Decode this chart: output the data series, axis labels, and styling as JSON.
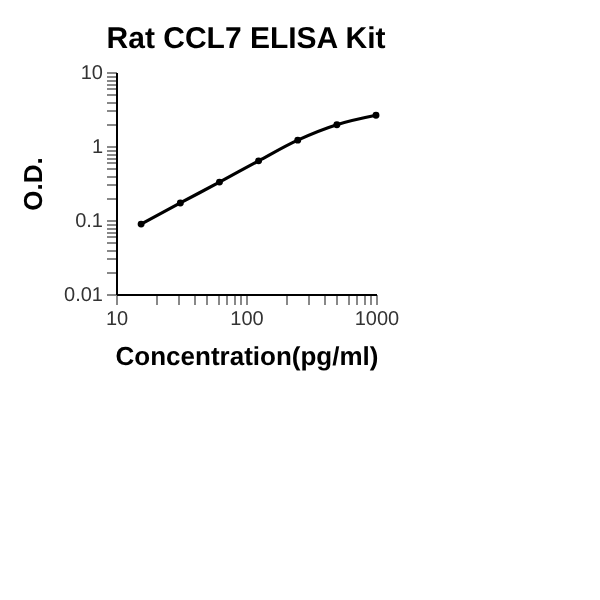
{
  "chart_data": {
    "type": "line",
    "title": "Rat CCL7 ELISA Kit",
    "xlabel": "Concentration(pg/ml)",
    "ylabel": "O.D.",
    "log": "xy",
    "grid": false,
    "marker": "circle",
    "line_style": "solid",
    "x": [
      15.6,
      31.25,
      62.5,
      125,
      250,
      500,
      1000
    ],
    "series": [
      {
        "color": "#000000",
        "values": [
          0.088,
          0.17,
          0.325,
          0.63,
          1.2,
          1.94,
          2.6
        ]
      }
    ],
    "xlim": [
      10,
      1000
    ],
    "xticks": [
      10,
      {
        "value": 20,
        "label": null
      },
      {
        "value": 30,
        "label": null
      },
      {
        "value": 40,
        "label": null
      },
      {
        "value": 50,
        "label": null
      },
      {
        "value": 60,
        "label": null
      },
      {
        "value": 70,
        "label": null
      },
      {
        "value": 80,
        "label": null
      },
      {
        "value": 90,
        "label": null
      },
      100,
      {
        "value": 200,
        "label": null
      },
      {
        "value": 300,
        "label": null
      },
      {
        "value": 400,
        "label": null
      },
      {
        "value": 500,
        "label": null
      },
      {
        "value": 600,
        "label": null
      },
      {
        "value": 700,
        "label": null
      },
      {
        "value": 800,
        "label": null
      },
      {
        "value": 900,
        "label": null
      },
      1000
    ],
    "ylim": [
      0.01,
      10
    ],
    "yticks": [
      0.01,
      {
        "value": 0.02,
        "label": null
      },
      {
        "value": 0.03,
        "label": null
      },
      {
        "value": 0.04,
        "label": null
      },
      {
        "value": 0.05,
        "label": null
      },
      {
        "value": 0.06,
        "label": null
      },
      {
        "value": 0.07,
        "label": null
      },
      {
        "value": 0.08,
        "label": null
      },
      {
        "value": 0.09,
        "label": null
      },
      0.1,
      {
        "value": 0.2,
        "label": null
      },
      {
        "value": 0.3,
        "label": null
      },
      {
        "value": 0.4,
        "label": null
      },
      {
        "value": 0.5,
        "label": null
      },
      {
        "value": 0.6,
        "label": null
      },
      {
        "value": 0.7,
        "label": null
      },
      {
        "value": 0.8,
        "label": null
      },
      {
        "value": 0.9,
        "label": null
      },
      1,
      {
        "value": 2,
        "label": null
      },
      {
        "value": 3,
        "label": null
      },
      {
        "value": 4,
        "label": null
      },
      {
        "value": 5,
        "label": null
      },
      {
        "value": 6,
        "label": null
      },
      {
        "value": 7,
        "label": null
      },
      {
        "value": 8,
        "label": null
      },
      {
        "value": 9,
        "label": null
      },
      10
    ]
  }
}
